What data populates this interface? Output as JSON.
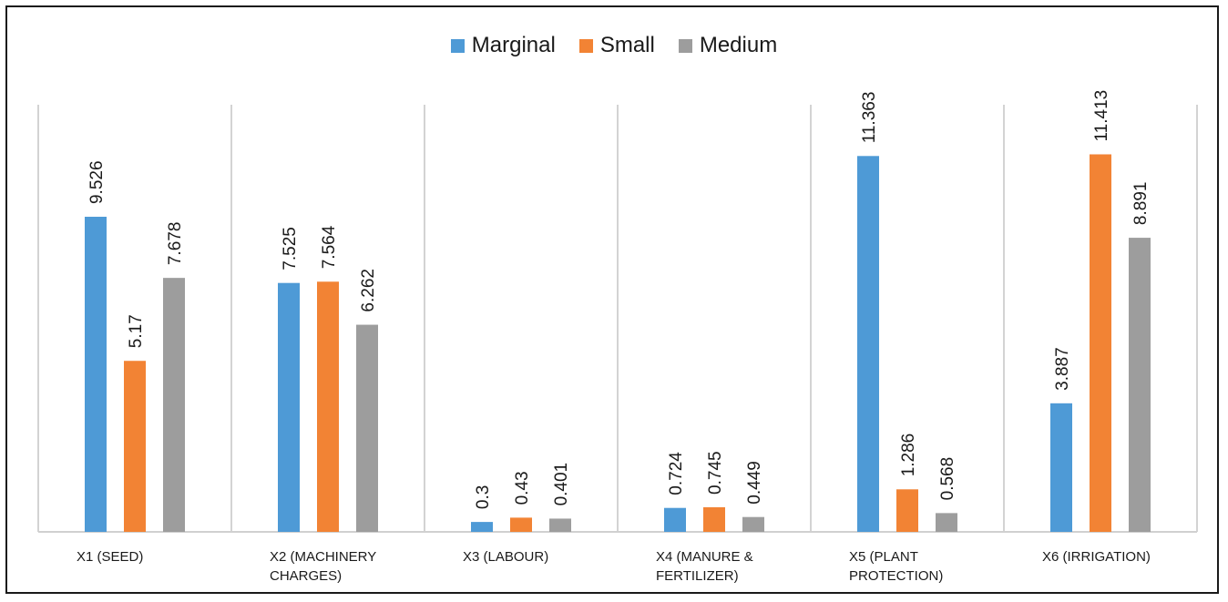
{
  "chart_data": {
    "type": "bar",
    "title": "",
    "xlabel": "",
    "ylabel": "",
    "ylim": [
      0,
      12.5
    ],
    "grid": false,
    "legend_position": "top-center",
    "categories": [
      [
        "X1 (SEED)"
      ],
      [
        "X2 (MACHINERY",
        "CHARGES)"
      ],
      [
        "X3 (LABOUR)"
      ],
      [
        "X4 (MANURE &",
        "FERTILIZER)"
      ],
      [
        "X5 (PLANT",
        "PROTECTION)"
      ],
      [
        "X6  (IRRIGATION)"
      ]
    ],
    "series": [
      {
        "name": "Marginal",
        "color": "#4e9ad6",
        "values": [
          9.526,
          7.525,
          0.3,
          0.724,
          11.363,
          3.887
        ],
        "labels": [
          "9.526",
          "7.525",
          "0.3",
          "0.724",
          "11.363",
          "3.887"
        ]
      },
      {
        "name": "Small",
        "color": "#f28334",
        "values": [
          5.17,
          7.564,
          0.43,
          0.745,
          1.286,
          11.413
        ],
        "labels": [
          "5.17",
          "7.564",
          "0.43",
          "0.745",
          "1.286",
          "11.413"
        ]
      },
      {
        "name": "Medium",
        "color": "#9d9d9d",
        "values": [
          7.678,
          6.262,
          0.401,
          0.449,
          0.568,
          8.891
        ],
        "labels": [
          "7.678",
          "6.262",
          "0.401",
          "0.449",
          "0.568",
          "8.891"
        ]
      }
    ]
  },
  "colors": {
    "axis": "#d0d0d0",
    "separator": "#d3d3d3",
    "text": "#1a1a1a"
  }
}
